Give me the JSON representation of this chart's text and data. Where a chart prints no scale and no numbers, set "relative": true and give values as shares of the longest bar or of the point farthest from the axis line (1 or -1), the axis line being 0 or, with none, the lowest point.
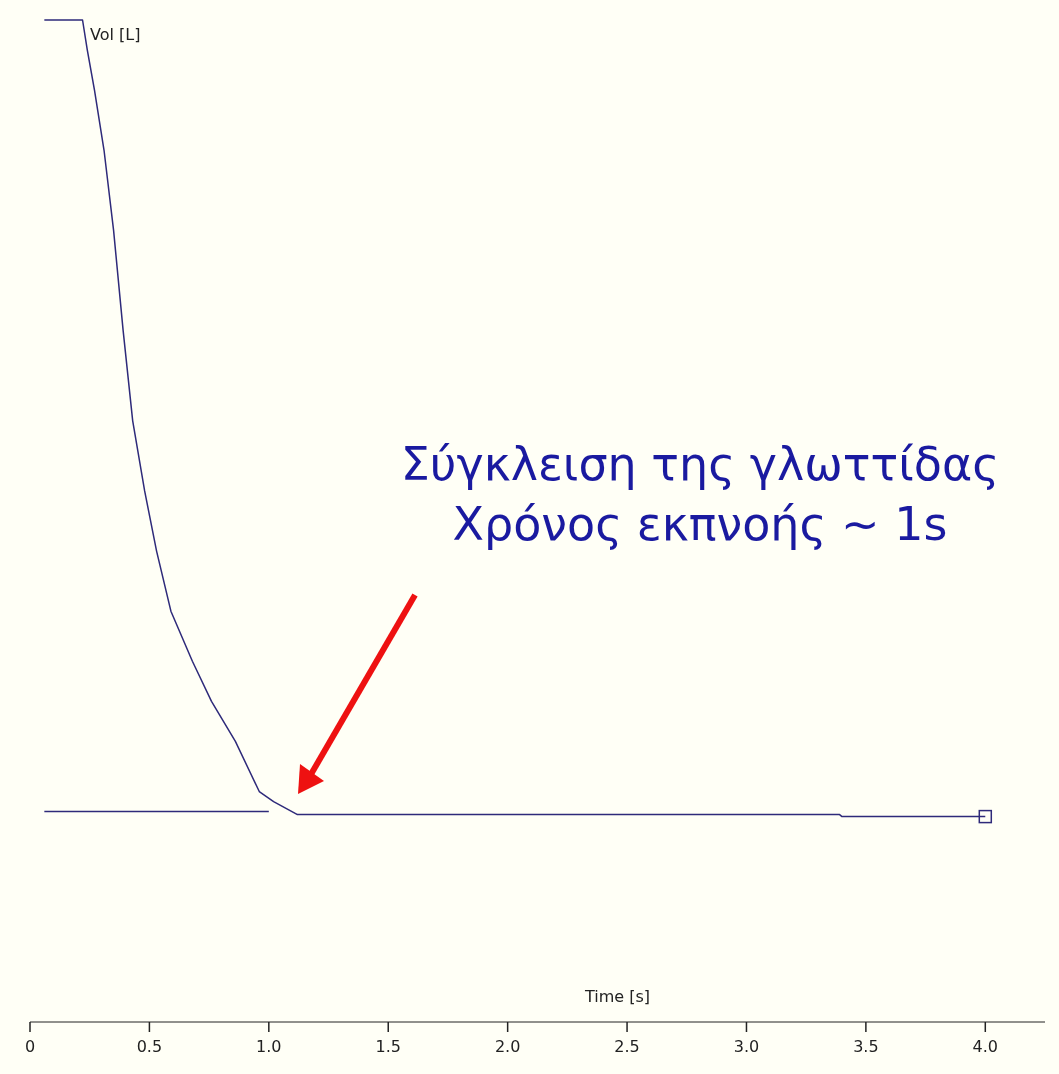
{
  "chart_data": {
    "type": "line",
    "relative": true,
    "xlabel": "Time [s]",
    "ylabel": "Vol [L]",
    "xlim": [
      0,
      4.25
    ],
    "xticks": [
      0,
      0.5,
      {
        "value": 1,
        "label": "1.0"
      },
      1.5,
      {
        "value": 2,
        "label": "2.0"
      },
      2.5,
      {
        "value": 3,
        "label": "3.0"
      },
      3.5,
      {
        "value": 4,
        "label": "4.0"
      }
    ],
    "series": [
      {
        "color": "#2e2a7a",
        "x": [
          0.06,
          1.0
        ],
        "values": [
          0.21,
          0.21
        ]
      },
      {
        "color": "#2e2a7a",
        "x": [
          0.06,
          0.22,
          0.24,
          0.27,
          0.31,
          0.35,
          0.39,
          0.43,
          0.48,
          0.53,
          0.59,
          0.68,
          0.76,
          0.86,
          0.96,
          1.02,
          1.12,
          3.39,
          3.4,
          4.0
        ],
        "values": [
          1,
          1,
          0.97,
          0.93,
          0.87,
          0.79,
          0.69,
          0.6,
          0.53,
          0.47,
          0.41,
          0.36,
          0.32,
          0.28,
          0.23,
          0.22,
          0.207,
          0.207,
          0.205,
          0.205
        ]
      }
    ],
    "grid": false,
    "annotations": [
      "Σύγκλειση της γλωττίδας\nΧρόνος εκπνοής ~ 1s"
    ]
  }
}
